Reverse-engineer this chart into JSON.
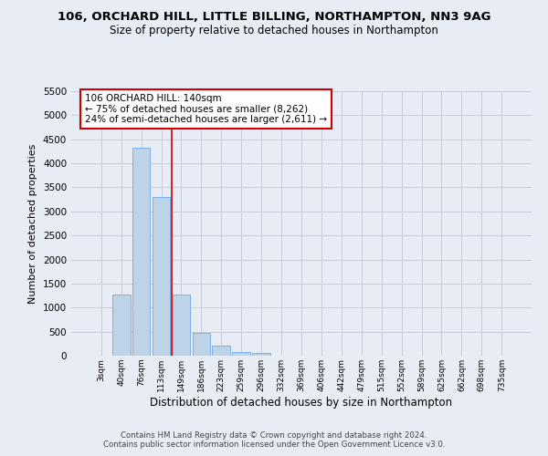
{
  "title_line1": "106, ORCHARD HILL, LITTLE BILLING, NORTHAMPTON, NN3 9AG",
  "title_line2": "Size of property relative to detached houses in Northampton",
  "xlabel": "Distribution of detached houses by size in Northampton",
  "ylabel": "Number of detached properties",
  "footer_line1": "Contains HM Land Registry data © Crown copyright and database right 2024.",
  "footer_line2": "Contains public sector information licensed under the Open Government Licence v3.0.",
  "bar_labels": [
    "3sqm",
    "40sqm",
    "76sqm",
    "113sqm",
    "149sqm",
    "186sqm",
    "223sqm",
    "259sqm",
    "296sqm",
    "332sqm",
    "369sqm",
    "406sqm",
    "442sqm",
    "479sqm",
    "515sqm",
    "552sqm",
    "589sqm",
    "625sqm",
    "662sqm",
    "698sqm",
    "735sqm"
  ],
  "bar_values": [
    0,
    1270,
    4330,
    3300,
    1280,
    480,
    210,
    80,
    55,
    0,
    0,
    0,
    0,
    0,
    0,
    0,
    0,
    0,
    0,
    0,
    0
  ],
  "bar_color": "#bdd4e8",
  "bar_edge_color": "#7aafe8",
  "grid_color": "#c8ccd8",
  "background_color": "#e8ecf4",
  "annotation_text": "106 ORCHARD HILL: 140sqm\n← 75% of detached houses are smaller (8,262)\n24% of semi-detached houses are larger (2,611) →",
  "annotation_box_color": "#ffffff",
  "annotation_box_edge": "#cc0000",
  "vline_x_index": 3.5,
  "vline_color": "#cc0000",
  "ylim": [
    0,
    5500
  ],
  "yticks": [
    0,
    500,
    1000,
    1500,
    2000,
    2500,
    3000,
    3500,
    4000,
    4500,
    5000,
    5500
  ]
}
